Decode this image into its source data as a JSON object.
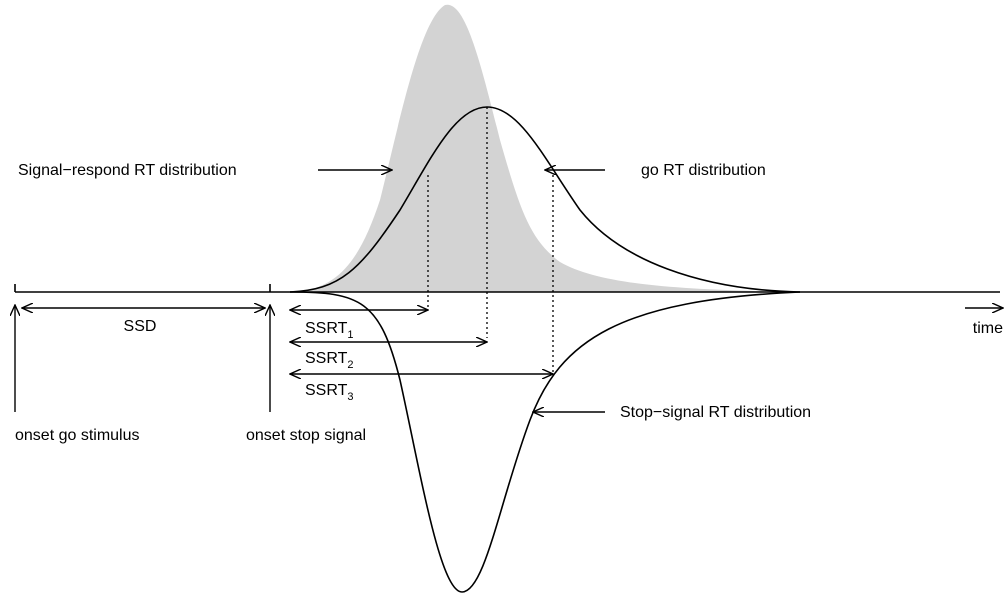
{
  "labels": {
    "signal_respond": "Signal−respond RT distribution",
    "go_rt": "go RT distribution",
    "ssd": "SSD",
    "ssrt": [
      {
        "text": "SSRT",
        "subscript": "1"
      },
      {
        "text": "SSRT",
        "subscript": "2"
      },
      {
        "text": "SSRT",
        "subscript": "3"
      }
    ],
    "time": "time",
    "onset_go": "onset go stimulus",
    "onset_stop": "onset stop signal",
    "stop_signal": "Stop−signal RT distribution"
  }
}
